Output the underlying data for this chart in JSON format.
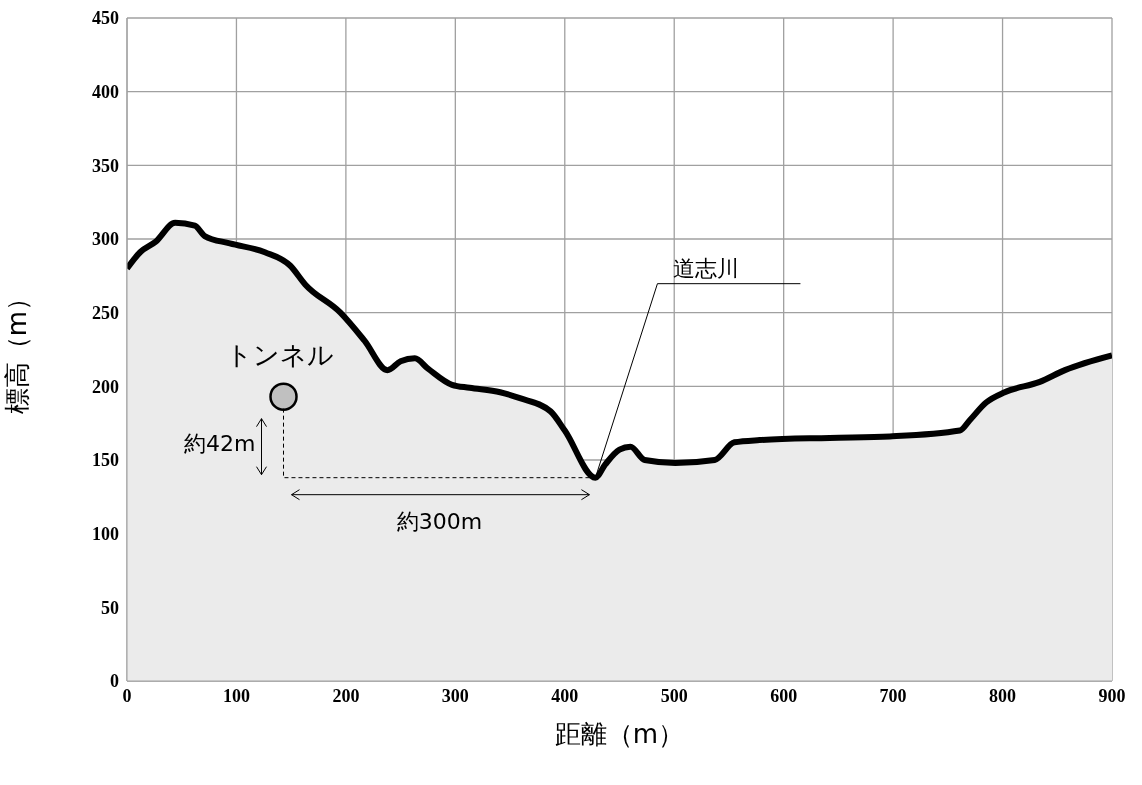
{
  "chart_data": {
    "type": "area",
    "xlabel": "距離（m）",
    "ylabel": "標高（m）",
    "xlim": [
      0,
      900
    ],
    "ylim": [
      0,
      450
    ],
    "xticks": [
      0,
      100,
      200,
      300,
      400,
      500,
      600,
      700,
      800,
      900
    ],
    "yticks": [
      0,
      50,
      100,
      150,
      200,
      250,
      300,
      350,
      400,
      450
    ],
    "grid": true,
    "legend": false,
    "series": [
      {
        "color": "#000000",
        "x": [
          0,
          12,
          26,
          44,
          62,
          71,
          94,
          126,
          149,
          163,
          195,
          217,
          238,
          250,
          263,
          275,
          297,
          313,
          341,
          359,
          387,
          400,
          428,
          437,
          450,
          460,
          473,
          501,
          537,
          555,
          578,
          642,
          697,
          761,
          770,
          785,
          802,
          834,
          857,
          900
        ],
        "values": [
          280,
          291,
          298,
          311,
          309,
          302,
          297,
          291,
          282,
          269,
          250,
          231,
          211,
          217,
          219,
          212,
          201,
          199,
          196,
          192,
          183,
          170,
          138,
          147,
          157,
          159,
          150,
          148,
          150,
          162,
          163.5,
          165,
          166,
          170,
          177,
          189,
          196,
          203,
          211,
          221
        ]
      },
      {
        "type": "scatter",
        "name": "トンネル",
        "color": "#c0c0c0",
        "x": [
          143
        ],
        "values": [
          193
        ]
      }
    ],
    "annotations": [
      {
        "text": "道志川",
        "x": 428,
        "y": 138
      },
      "約42m",
      "約300m"
    ]
  }
}
